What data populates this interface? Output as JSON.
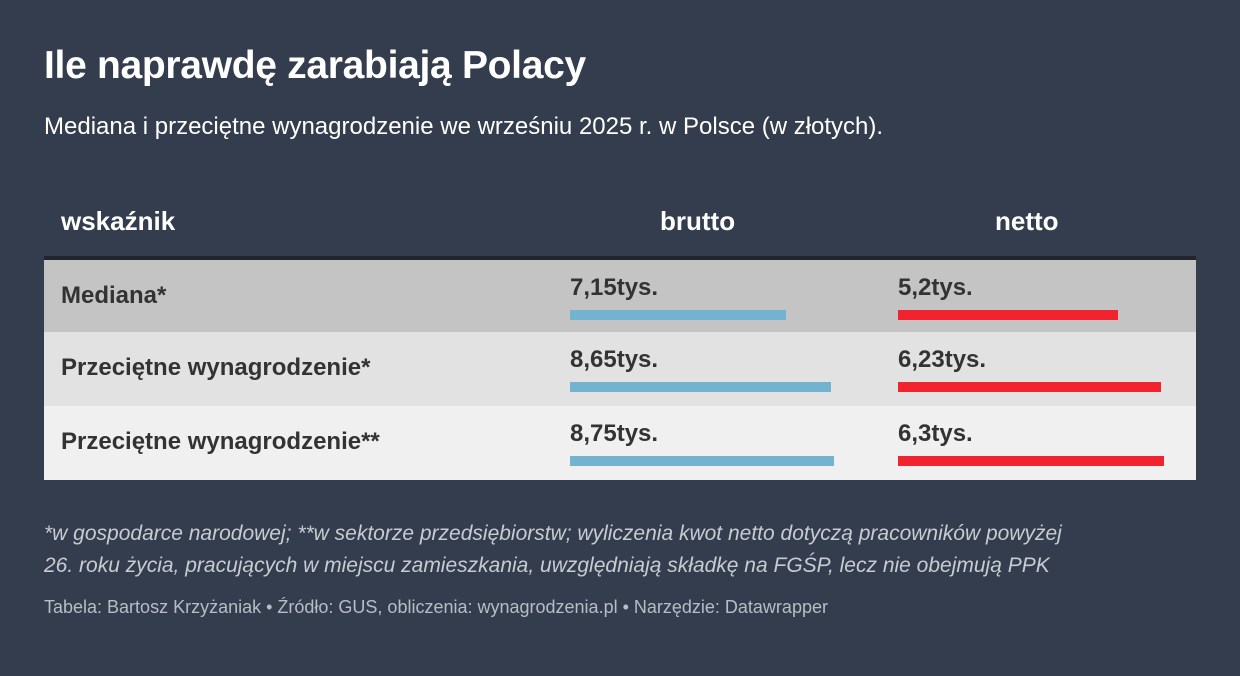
{
  "title": "Ile naprawdę zarabiają Polacy",
  "subtitle": "Mediana i przeciętne wynagrodzenie we wrześniu 2025 r. w Polsce (w złotych).",
  "colors": {
    "background": "#333d4d",
    "brutto_bar": "#74b3d0",
    "netto_bar": "#f0232f"
  },
  "chart_data": {
    "type": "table",
    "columns": [
      "wskaźnik",
      "brutto",
      "netto"
    ],
    "rows": [
      {
        "label": "Mediana*",
        "brutto": 7.15,
        "brutto_text": "7,15tys.",
        "netto": 5.2,
        "netto_text": "5,2tys."
      },
      {
        "label": "Przeciętne wynagrodzenie*",
        "brutto": 8.65,
        "brutto_text": "8,65tys.",
        "netto": 6.23,
        "netto_text": "6,23tys."
      },
      {
        "label": "Przeciętne wynagrodzenie**",
        "brutto": 8.75,
        "brutto_text": "8,75tys.",
        "netto": 6.3,
        "netto_text": "6,3tys."
      }
    ],
    "brutto_max": 8.75,
    "netto_max": 6.3
  },
  "note_line1": "*w gospodarce narodowej; **w sektorze przedsiębiorstw; wyliczenia kwot netto dotyczą pracowników powyżej",
  "note_line2": "26. roku życia, pracujących w miejscu zamieszkania, uwzględniają składkę na FGŚP, lecz nie obejmują PPK",
  "credit": "Tabela: Bartosz Krzyżaniak • Źródło: GUS, obliczenia: wynagrodzenia.pl • Narzędzie: Datawrapper"
}
